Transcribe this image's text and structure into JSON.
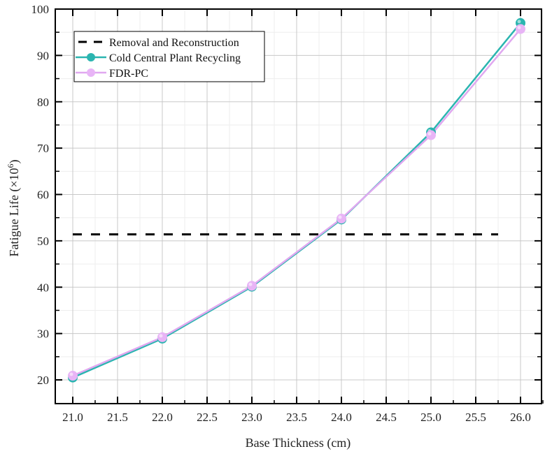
{
  "chart_data": {
    "type": "line",
    "title": "",
    "xlabel": "Base Thickness (cm)",
    "ylabel": "Fatigue Life (×10⁶)",
    "ylabel_base": "Fatigue Life (×10",
    "ylabel_exp": "6",
    "ylabel_close": ")",
    "xlim": [
      20.8,
      26.3
    ],
    "ylim": [
      15,
      100
    ],
    "grid": true,
    "legend_position": "upper left",
    "x": [
      21.0,
      22.0,
      23.0,
      24.0,
      25.0,
      26.0
    ],
    "x_ticks": [
      "21.0",
      "21.5",
      "22.0",
      "22.5",
      "23.0",
      "23.5",
      "24.0",
      "24.5",
      "25.0",
      "25.5",
      "26.0"
    ],
    "y_ticks": [
      "20",
      "30",
      "40",
      "50",
      "60",
      "70",
      "80",
      "90",
      "100"
    ],
    "series": [
      {
        "name": "Removal and Reconstruction",
        "style": "dashed",
        "color": "#000000",
        "values": [
          51.4,
          51.4,
          51.4,
          51.4,
          51.4,
          51.4
        ],
        "x_range": [
          21.0,
          25.75
        ]
      },
      {
        "name": "Cold Central Plant Recycling",
        "style": "line+marker",
        "color": "#2bb5b0",
        "values": [
          20.5,
          28.9,
          40.1,
          54.6,
          73.4,
          97.0
        ]
      },
      {
        "name": "FDR-PC",
        "style": "line+marker",
        "color": "#e0a8f0",
        "values": [
          20.9,
          29.2,
          40.3,
          54.8,
          72.8,
          95.7
        ]
      }
    ]
  }
}
